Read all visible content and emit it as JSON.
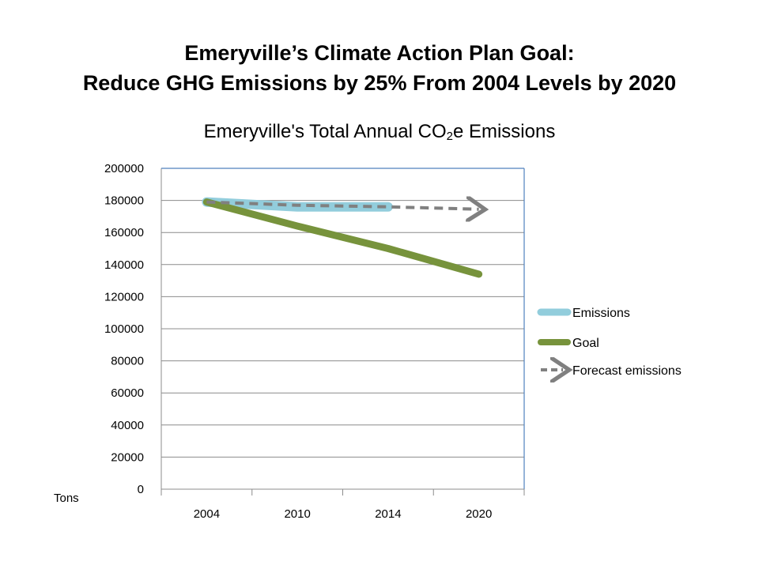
{
  "slide": {
    "title_line1": "Emeryville’s Climate Action Plan Goal:",
    "title_line2": "Reduce GHG Emissions by 25% From 2004 Levels by 2020"
  },
  "chart_data": {
    "type": "line",
    "title_prefix": "Emeryville's Total Annual CO",
    "title_sub": "2",
    "title_suffix": "e Emissions",
    "ylabel": "Tons",
    "categories": [
      "2004",
      "2010",
      "2014",
      "2020"
    ],
    "ylim": [
      0,
      200000
    ],
    "yticks": [
      0,
      20000,
      40000,
      60000,
      80000,
      100000,
      120000,
      140000,
      160000,
      180000,
      200000
    ],
    "grid": true,
    "legend_position": "right",
    "series": [
      {
        "name": "Emissions",
        "values": [
          179000,
          176000,
          176000,
          null
        ],
        "color": "#92cddc",
        "style": "solid"
      },
      {
        "name": "Goal",
        "values": [
          179000,
          164000,
          150000,
          134000
        ],
        "color": "#77933c",
        "style": "solid"
      },
      {
        "name": "Forecast emissions",
        "values": [
          179000,
          177000,
          176000,
          174500
        ],
        "color": "#808080",
        "style": "dashed-arrow"
      }
    ]
  }
}
